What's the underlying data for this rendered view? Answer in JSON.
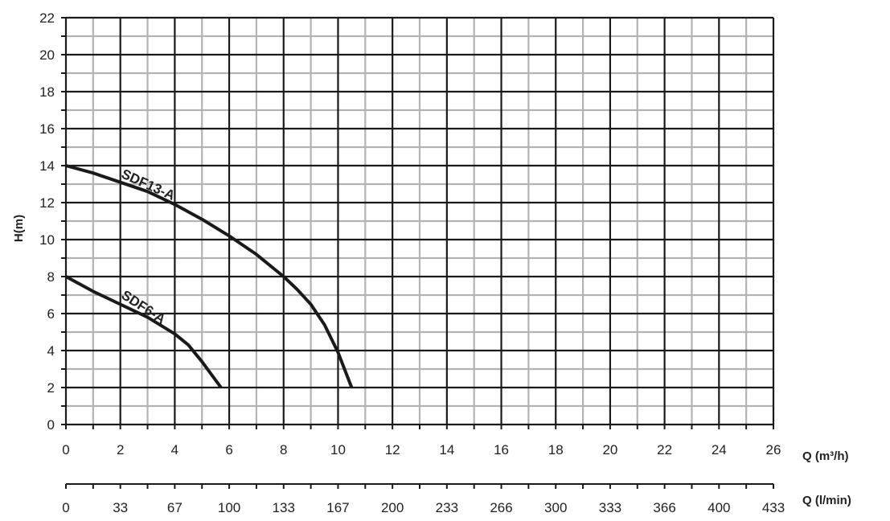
{
  "chart_data": {
    "type": "line",
    "title": "",
    "xlabel": "Q (m³/h)",
    "x2label": "Q (l/min)",
    "ylabel": "H(m)",
    "xlim": [
      0,
      26
    ],
    "ylim": [
      0,
      22
    ],
    "x_ticks": [
      "0",
      "2",
      "4",
      "6",
      "8",
      "10",
      "12",
      "14",
      "16",
      "18",
      "20",
      "22",
      "24",
      "26"
    ],
    "y_ticks": [
      "0",
      "2",
      "4",
      "6",
      "8",
      "10",
      "12",
      "14",
      "16",
      "18",
      "20",
      "22"
    ],
    "x2_ticks": [
      "0",
      "33",
      "67",
      "100",
      "133",
      "167",
      "200",
      "233",
      "266",
      "300",
      "333",
      "366",
      "400",
      "433"
    ],
    "grid": true,
    "series": [
      {
        "name": "SDF13-A",
        "x": [
          0,
          1,
          2,
          3,
          4,
          5,
          6,
          7,
          8,
          8.5,
          9,
          9.5,
          10,
          10.5
        ],
        "y": [
          14,
          13.6,
          13.1,
          12.6,
          11.9,
          11.1,
          10.2,
          9.2,
          8.0,
          7.3,
          6.5,
          5.4,
          3.9,
          2.0
        ]
      },
      {
        "name": "SDF6-A",
        "x": [
          0,
          1,
          2,
          3,
          4,
          4.5,
          5,
          5.7
        ],
        "y": [
          8,
          7.2,
          6.5,
          5.8,
          4.9,
          4.3,
          3.4,
          2.0
        ]
      }
    ]
  }
}
